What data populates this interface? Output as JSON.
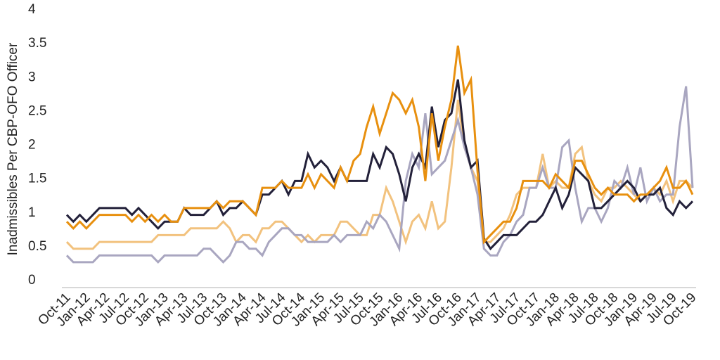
{
  "chart_data": {
    "type": "line",
    "y_label": "Inadmissibles Per CBP-OFO Officer",
    "categories": [
      "Oct-11",
      null,
      null,
      "Jan-12",
      null,
      null,
      "Apr-12",
      null,
      null,
      "Jul-12",
      null,
      null,
      "Oct-12",
      null,
      null,
      "Jan-13",
      null,
      null,
      "Apr-13",
      null,
      null,
      "Jul-13",
      null,
      null,
      "Oct-13",
      null,
      null,
      "Jan-14",
      null,
      null,
      "Apr-14",
      null,
      null,
      "Jul-14",
      null,
      null,
      "Oct-14",
      null,
      null,
      "Jan-15",
      null,
      null,
      "Apr-15",
      null,
      null,
      "Jul-15",
      null,
      null,
      "Oct-15",
      null,
      null,
      "Jan-16",
      null,
      null,
      "Apr-16",
      null,
      null,
      "Jul-16",
      null,
      null,
      "Oct-16",
      null,
      null,
      "Jan-17",
      null,
      null,
      "Apr-17",
      null,
      null,
      "Jul-17",
      null,
      null,
      "Oct-17",
      null,
      null,
      "Jan-18",
      null,
      null,
      "Apr-18",
      null,
      null,
      "Jul-18",
      null,
      null,
      "Oct-18",
      null,
      null,
      "Jan-19",
      null,
      null,
      "Apr-19",
      null,
      null,
      "Jul-19",
      null,
      null,
      "Oct-19"
    ],
    "series": [
      {
        "color": "#f2c27e",
        "values": [
          0.55,
          0.45,
          0.45,
          0.45,
          0.45,
          0.55,
          0.55,
          0.55,
          0.55,
          0.55,
          0.55,
          0.55,
          0.55,
          0.55,
          0.65,
          0.65,
          0.65,
          0.65,
          0.65,
          0.75,
          0.75,
          0.75,
          0.75,
          0.75,
          0.85,
          0.75,
          0.55,
          0.65,
          0.65,
          0.55,
          0.75,
          0.75,
          0.85,
          0.85,
          0.75,
          0.65,
          0.55,
          0.65,
          0.55,
          0.65,
          0.65,
          0.65,
          0.85,
          0.85,
          0.75,
          0.65,
          0.65,
          0.95,
          0.95,
          1.35,
          1.15,
          0.85,
          0.55,
          0.85,
          0.95,
          0.75,
          1.15,
          0.75,
          0.85,
          1.65,
          2.65,
          1.95,
          1.65,
          1.45,
          0.55,
          0.55,
          0.65,
          0.75,
          0.95,
          1.25,
          1.35,
          1.35,
          1.35,
          1.85,
          1.35,
          1.45,
          1.35,
          1.35,
          1.85,
          1.95,
          1.45,
          1.25,
          1.15,
          1.35,
          1.35,
          1.45,
          1.35,
          1.25,
          1.15,
          1.25,
          1.35,
          1.25,
          1.45,
          1.15,
          1.45,
          1.45,
          1.35
        ]
      },
      {
        "color": "#a9a6c0",
        "values": [
          0.35,
          0.25,
          0.25,
          0.25,
          0.25,
          0.35,
          0.35,
          0.35,
          0.35,
          0.35,
          0.35,
          0.35,
          0.35,
          0.35,
          0.25,
          0.35,
          0.35,
          0.35,
          0.35,
          0.35,
          0.35,
          0.45,
          0.45,
          0.35,
          0.25,
          0.35,
          0.55,
          0.55,
          0.45,
          0.45,
          0.35,
          0.55,
          0.65,
          0.75,
          0.75,
          0.65,
          0.65,
          0.55,
          0.55,
          0.55,
          0.55,
          0.65,
          0.55,
          0.65,
          0.65,
          0.65,
          0.85,
          0.75,
          0.95,
          0.85,
          0.65,
          0.45,
          1.45,
          1.85,
          1.65,
          2.45,
          1.55,
          1.65,
          1.75,
          2.05,
          2.35,
          1.95,
          1.65,
          1.25,
          0.45,
          0.35,
          0.35,
          0.55,
          0.65,
          0.85,
          0.95,
          1.35,
          1.35,
          1.65,
          1.35,
          1.35,
          1.95,
          2.05,
          1.35,
          0.85,
          1.05,
          1.05,
          0.85,
          1.05,
          1.45,
          1.35,
          1.65,
          1.25,
          1.65,
          1.15,
          1.35,
          1.15,
          1.25,
          1.25,
          2.25,
          2.85,
          1.35
        ]
      },
      {
        "color": "#23213a",
        "values": [
          0.95,
          0.85,
          0.95,
          0.85,
          0.95,
          1.05,
          1.05,
          1.05,
          1.05,
          1.05,
          0.95,
          1.05,
          0.95,
          0.85,
          0.75,
          0.85,
          0.85,
          0.85,
          1.05,
          0.95,
          0.95,
          0.95,
          1.05,
          1.15,
          0.95,
          1.05,
          1.05,
          1.15,
          1.05,
          0.95,
          1.25,
          1.25,
          1.35,
          1.45,
          1.25,
          1.45,
          1.45,
          1.85,
          1.65,
          1.75,
          1.65,
          1.45,
          1.65,
          1.45,
          1.45,
          1.45,
          1.45,
          1.85,
          1.65,
          1.95,
          1.85,
          1.55,
          1.15,
          1.65,
          1.85,
          1.65,
          2.55,
          1.95,
          2.35,
          2.45,
          2.95,
          2.05,
          1.65,
          1.75,
          0.6,
          0.45,
          0.55,
          0.65,
          0.65,
          0.65,
          0.75,
          0.85,
          0.85,
          0.95,
          1.15,
          1.35,
          1.05,
          1.25,
          1.65,
          1.55,
          1.45,
          1.05,
          1.05,
          1.15,
          1.25,
          1.35,
          1.45,
          1.35,
          1.15,
          1.25,
          1.25,
          1.35,
          1.05,
          0.95,
          1.15,
          1.05,
          1.15
        ]
      },
      {
        "color": "#e8900f",
        "values": [
          0.85,
          0.75,
          0.85,
          0.75,
          0.85,
          0.95,
          0.95,
          0.95,
          0.95,
          0.95,
          0.85,
          0.95,
          0.85,
          0.95,
          0.85,
          0.95,
          0.85,
          0.85,
          1.05,
          1.05,
          1.05,
          1.05,
          1.05,
          1.15,
          1.05,
          1.15,
          1.15,
          1.15,
          1.05,
          0.95,
          1.35,
          1.35,
          1.35,
          1.45,
          1.35,
          1.35,
          1.35,
          1.55,
          1.35,
          1.55,
          1.45,
          1.35,
          1.65,
          1.45,
          1.75,
          1.85,
          2.25,
          2.55,
          2.15,
          2.45,
          2.75,
          2.65,
          2.45,
          2.65,
          2.25,
          1.45,
          2.45,
          1.75,
          2.25,
          2.65,
          3.45,
          2.75,
          2.95,
          1.6,
          0.55,
          0.65,
          0.75,
          0.85,
          0.85,
          1.05,
          1.45,
          1.45,
          1.45,
          1.45,
          1.35,
          1.55,
          1.45,
          1.35,
          1.75,
          1.75,
          1.55,
          1.35,
          1.25,
          1.35,
          1.25,
          1.25,
          1.25,
          1.15,
          1.25,
          1.25,
          1.35,
          1.45,
          1.65,
          1.35,
          1.35,
          1.45,
          1.25
        ]
      }
    ],
    "ylim": [
      0,
      4
    ],
    "yticks": [
      0,
      0.5,
      1,
      1.5,
      2,
      2.5,
      3,
      3.5,
      4
    ]
  }
}
